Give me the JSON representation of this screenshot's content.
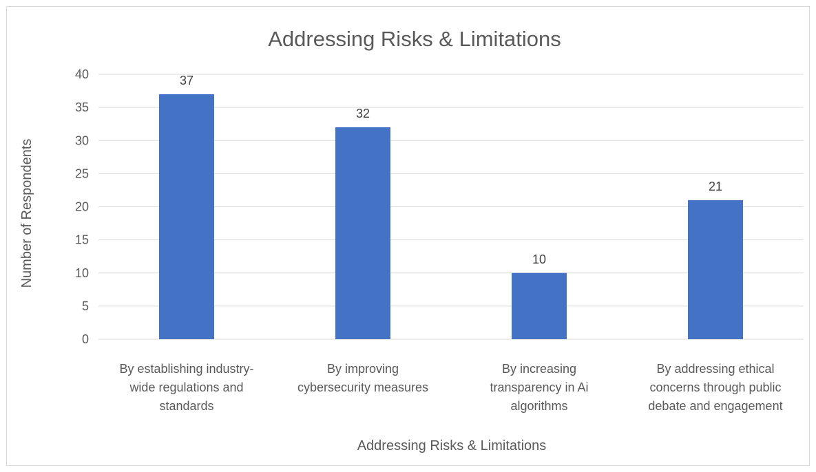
{
  "chart_data": {
    "type": "bar",
    "title": "Addressing Risks & Limitations",
    "xlabel": "Addressing Risks & Limitations",
    "ylabel": "Number of Respondents",
    "categories": [
      "By establishing industry-wide regulations and standards",
      "By improving cybersecurity measures",
      "By increasing transparency in Ai algorithms",
      "By addressing ethical concerns through public debate and engagement"
    ],
    "category_lines": [
      [
        "By establishing industry-",
        "wide regulations and",
        "standards"
      ],
      [
        "By improving",
        "cybersecurity measures"
      ],
      [
        "By increasing",
        "transparency in Ai",
        "algorithms"
      ],
      [
        "By addressing ethical",
        "concerns through public",
        "debate and engagement"
      ]
    ],
    "values": [
      37,
      32,
      10,
      21
    ],
    "ylim": [
      0,
      40
    ],
    "yticks": [
      0,
      5,
      10,
      15,
      20,
      25,
      30,
      35,
      40
    ],
    "grid": true,
    "data_labels": true,
    "bar_color": "#4472c4",
    "grid_color": "#d9d9d9"
  }
}
